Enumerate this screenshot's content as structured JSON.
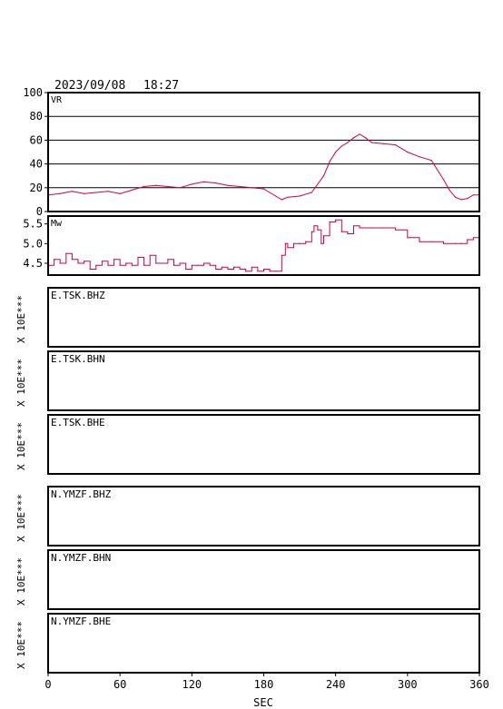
{
  "header": {
    "date": "2023/09/08",
    "time": "18:27"
  },
  "colors": {
    "trace": "#d0004a",
    "frame": "#000000",
    "grid": "#000000"
  },
  "chart_data": [
    {
      "type": "line",
      "panel": "vr",
      "label": "VR",
      "ylim": [
        0,
        100
      ],
      "yticks": [
        0,
        20,
        40,
        60,
        80,
        100
      ],
      "ytick_labels": [
        "0",
        "20",
        "40",
        "60",
        "80",
        "100"
      ],
      "grid": true,
      "x": [
        0,
        10,
        20,
        30,
        40,
        50,
        60,
        70,
        80,
        90,
        100,
        110,
        120,
        130,
        140,
        150,
        160,
        170,
        180,
        190,
        195,
        200,
        210,
        220,
        230,
        235,
        240,
        245,
        250,
        255,
        260,
        265,
        270,
        280,
        290,
        300,
        310,
        320,
        330,
        335,
        340,
        345,
        350,
        355,
        360
      ],
      "values": [
        14,
        15,
        17,
        15,
        16,
        17,
        15,
        18,
        21,
        22,
        21,
        20,
        23,
        25,
        24,
        22,
        21,
        20,
        19,
        13,
        10,
        12,
        13,
        16,
        30,
        42,
        50,
        55,
        58,
        62,
        65,
        62,
        58,
        57,
        56,
        50,
        46,
        43,
        27,
        18,
        12,
        10,
        11,
        14,
        14
      ]
    },
    {
      "type": "line",
      "panel": "mw",
      "label": "Mw",
      "ylim": [
        4.2,
        5.7
      ],
      "yticks": [
        4.5,
        5.0,
        5.5
      ],
      "ytick_labels": [
        "4.5",
        "5.0",
        "5.5"
      ],
      "grid": false,
      "step": true,
      "x": [
        0,
        5,
        10,
        15,
        20,
        25,
        30,
        35,
        40,
        45,
        50,
        55,
        60,
        65,
        70,
        75,
        80,
        85,
        90,
        95,
        100,
        105,
        110,
        115,
        120,
        125,
        130,
        135,
        140,
        145,
        150,
        155,
        160,
        165,
        170,
        175,
        180,
        185,
        190,
        195,
        198,
        200,
        205,
        210,
        215,
        220,
        222,
        225,
        228,
        230,
        235,
        240,
        245,
        250,
        255,
        260,
        270,
        280,
        290,
        300,
        310,
        320,
        330,
        340,
        345,
        350,
        355,
        360
      ],
      "values": [
        4.45,
        4.6,
        4.5,
        4.75,
        4.6,
        4.5,
        4.55,
        4.35,
        4.45,
        4.55,
        4.45,
        4.6,
        4.45,
        4.5,
        4.45,
        4.65,
        4.45,
        4.7,
        4.5,
        4.5,
        4.6,
        4.45,
        4.5,
        4.35,
        4.45,
        4.45,
        4.5,
        4.45,
        4.35,
        4.4,
        4.35,
        4.4,
        4.35,
        4.3,
        4.4,
        4.3,
        4.35,
        4.3,
        4.3,
        4.7,
        5.0,
        4.9,
        5.0,
        5.0,
        5.05,
        5.3,
        5.45,
        5.35,
        5.0,
        5.2,
        5.55,
        5.6,
        5.3,
        5.25,
        5.45,
        5.4,
        5.4,
        5.4,
        5.35,
        5.15,
        5.05,
        5.05,
        5.0,
        5.0,
        5.0,
        5.1,
        5.15,
        5.15
      ]
    }
  ],
  "stations": [
    {
      "label": "E.TSK.BHZ",
      "yunit": "X 10E***"
    },
    {
      "label": "E.TSK.BHN",
      "yunit": "X 10E***"
    },
    {
      "label": "E.TSK.BHE",
      "yunit": "X 10E***"
    },
    {
      "label": "N.YMZF.BHZ",
      "yunit": "X 10E***"
    },
    {
      "label": "N.YMZF.BHN",
      "yunit": "X 10E***"
    },
    {
      "label": "N.YMZF.BHE",
      "yunit": "X 10E***"
    }
  ],
  "xaxis": {
    "label": "SEC",
    "range": [
      0,
      360
    ],
    "ticks": [
      0,
      60,
      120,
      180,
      240,
      300,
      360
    ],
    "tick_labels": [
      "0",
      "60",
      "120",
      "180",
      "240",
      "300",
      "360"
    ]
  }
}
